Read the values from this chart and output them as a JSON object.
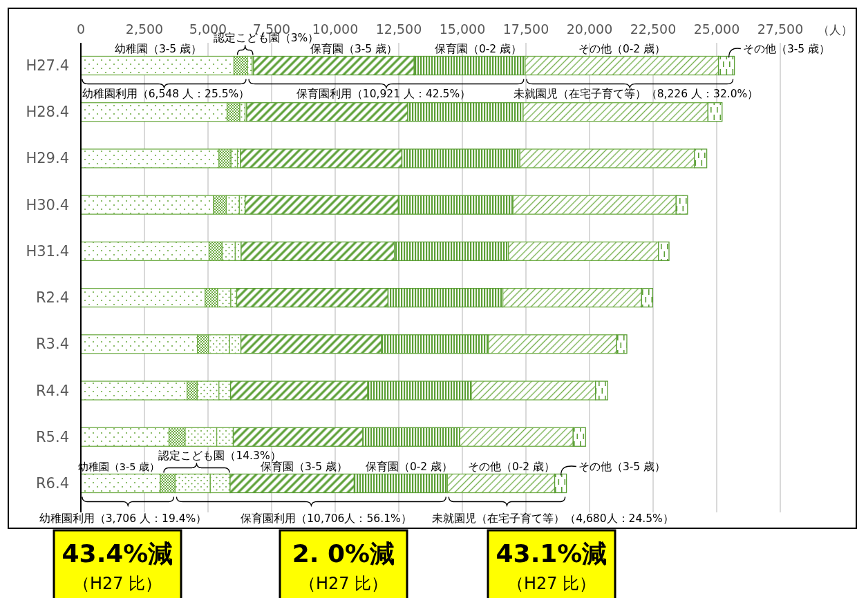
{
  "chart_data": {
    "type": "bar",
    "orientation": "horizontal",
    "stacked": true,
    "grid": "x",
    "xlabel": "（人）",
    "categories": [
      "H27.4",
      "H28.4",
      "H29.4",
      "H30.4",
      "H31.4",
      "R2.4",
      "R3.4",
      "R4.4",
      "R5.4",
      "R6.4"
    ],
    "xlim": [
      0,
      27500
    ],
    "xticks": [
      0,
      {
        "value": 2500,
        "label": "2,500"
      },
      {
        "value": 5000,
        "label": "5,000"
      },
      {
        "value": 7500,
        "label": "7,500"
      },
      {
        "value": 10000,
        "label": "10,000"
      },
      {
        "value": 12500,
        "label": "12,500"
      },
      {
        "value": 15000,
        "label": "15,000"
      },
      {
        "value": 17500,
        "label": "17,500"
      },
      {
        "value": 20000,
        "label": "20,000"
      },
      {
        "value": 22500,
        "label": "22,500"
      },
      {
        "value": 25000,
        "label": "25,000"
      },
      {
        "value": 27500,
        "label": "27,500"
      }
    ],
    "series": [
      {
        "color": "#70ad47",
        "values": [
          6020,
          5750,
          5429,
          5215,
          5041,
          4886,
          4584,
          4177,
          3467,
          3125
        ]
      },
      {
        "color": "#70ad47",
        "values": [
          528,
          500,
          475,
          505,
          513,
          494,
          438,
          399,
          633,
          581
        ]
      },
      {
        "color": "#70ad47",
        "values": [
          190,
          207,
          253,
          514,
          517,
          514,
          823,
          853,
          1242,
          1384
        ]
      },
      {
        "color": "#70ad47",
        "values": [
          52,
          65,
          117,
          223,
          231,
          234,
          448,
          457,
          650,
          777
        ]
      },
      {
        "color": "#5b9f35",
        "values": [
          6316,
          6333,
          6346,
          6027,
          6027,
          5948,
          5530,
          5394,
          5095,
          4880
        ]
      },
      {
        "color": "#5b9f35",
        "values": [
          4363,
          4535,
          4641,
          4508,
          4483,
          4518,
          4201,
          4073,
          3813,
          3665
        ]
      },
      {
        "color": "#70ad47",
        "values": [
          7601,
          7265,
          6864,
          6413,
          5897,
          5452,
          5044,
          4883,
          4456,
          4218
        ]
      },
      {
        "color": "#5b9f35",
        "values": [
          625,
          557,
          484,
          448,
          416,
          435,
          399,
          479,
          489,
          462
        ]
      }
    ],
    "annotations": [
      "幼稚園（3-5 歳）",
      "認定こども園（3%）",
      "保育園（3-5 歳）",
      "保育園（0-2 歳）",
      "その他（0-2 歳）",
      "その他（3-5 歳）",
      "幼稚園利用（6,548 人：25.5%）",
      "保育園利用（10,921 人：42.5%）",
      "未就園児（在宅子育て等）（8,226 人：32.0%）",
      "幼稚園（3-5 歳）",
      "認定こども園（14.3%）",
      "保育園（3-5 歳）",
      "保育園（0-2 歳）",
      "その他（0-2 歳）",
      "その他（3-5 歳）",
      "幼稚園利用（3,706 人：19.4%）",
      "保育園利用（10,706人：56.1%）",
      "未就園児（在宅子育て等）（4,680人：24.5%）",
      "43.4%減",
      "（H27 比）",
      "2. 0%減",
      "（H27 比）",
      "43.1%減",
      "（H27 比）"
    ]
  }
}
